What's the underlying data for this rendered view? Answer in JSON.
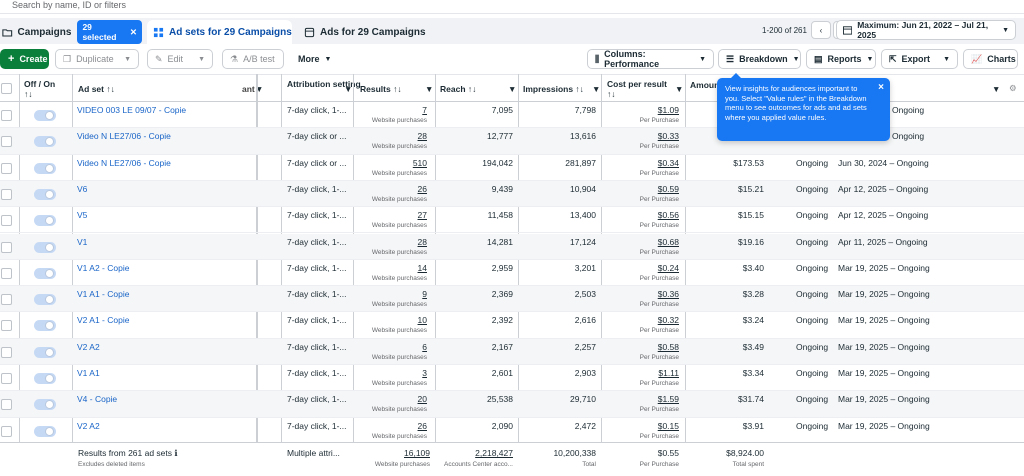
{
  "search": {
    "placeholder": "Search by name, ID or filters"
  },
  "tabs": {
    "campaigns": {
      "label": "Campaigns",
      "chip": "29 selected"
    },
    "adsets": {
      "label": "Ad sets for 29 Campaigns"
    },
    "ads": {
      "label": "Ads for 29 Campaigns"
    }
  },
  "pager": {
    "range": "1-200 of 261",
    "prev": "‹",
    "next": "›"
  },
  "date_range": "Maximum: Jun 21, 2022 – Jul 21, 2025",
  "toolbar": {
    "create": "Create",
    "duplicate": "Duplicate",
    "edit": "Edit",
    "ab_test": "A/B test",
    "more": "More",
    "columns": "Columns: Performance",
    "breakdown": "Breakdown",
    "reports": "Reports",
    "export": "Export",
    "charts": "Charts"
  },
  "columns": {
    "off_on": "Off / On",
    "off_on_sort": "↑↓",
    "adset": "Ad set ↑↓",
    "attribution": "Attribution setting",
    "results": "Results ↑↓",
    "reach": "Reach ↑↓",
    "impressions": "Impressions ↑↓",
    "cpr": "Cost per result",
    "cpr_sort": "↑↓",
    "amount": "Amoun",
    "cut": "ant"
  },
  "tooltip": {
    "text": "View insights for audiences important to you. Select \"Value rules\" in the Breakdown menu to see outcomes for ads and ad sets where you applied value rules.",
    "close": "×"
  },
  "rows": [
    {
      "name": "VIDEO 003 LE 09/07 - Copie",
      "attr": "7-day click, 1-...",
      "results": "7",
      "reach": "7,095",
      "impr": "7,798",
      "cpr": "$1.09",
      "amount": "",
      "delivery": "",
      "ends": "Ongoing"
    },
    {
      "name": "Video N LE27/06 - Copie",
      "attr": "7-day click or ...",
      "results": "28",
      "reach": "12,777",
      "impr": "13,616",
      "cpr": "$0.33",
      "amount": "",
      "delivery": "",
      "ends": "Ongoing"
    },
    {
      "name": "Video N LE27/06 - Copie",
      "attr": "7-day click or ...",
      "results": "510",
      "reach": "194,042",
      "impr": "281,897",
      "cpr": "$0.34",
      "amount": "$173.53",
      "delivery": "Ongoing",
      "ends": "Jun 30, 2024 – Ongoing"
    },
    {
      "name": "V6",
      "attr": "7-day click, 1-...",
      "results": "26",
      "reach": "9,439",
      "impr": "10,904",
      "cpr": "$0.59",
      "amount": "$15.21",
      "delivery": "Ongoing",
      "ends": "Apr 12, 2025 – Ongoing"
    },
    {
      "name": "V5",
      "attr": "7-day click, 1-...",
      "results": "27",
      "reach": "11,458",
      "impr": "13,400",
      "cpr": "$0.56",
      "amount": "$15.15",
      "delivery": "Ongoing",
      "ends": "Apr 12, 2025 – Ongoing"
    },
    {
      "name": "V1",
      "attr": "7-day click, 1-...",
      "results": "28",
      "reach": "14,281",
      "impr": "17,124",
      "cpr": "$0.68",
      "amount": "$19.16",
      "delivery": "Ongoing",
      "ends": "Apr 11, 2025 – Ongoing"
    },
    {
      "name": "V1 A2 - Copie",
      "attr": "7-day click, 1-...",
      "results": "14",
      "reach": "2,959",
      "impr": "3,201",
      "cpr": "$0.24",
      "amount": "$3.40",
      "delivery": "Ongoing",
      "ends": "Mar 19, 2025 – Ongoing"
    },
    {
      "name": "V1 A1 - Copie",
      "attr": "7-day click, 1-...",
      "results": "9",
      "reach": "2,369",
      "impr": "2,503",
      "cpr": "$0.36",
      "amount": "$3.28",
      "delivery": "Ongoing",
      "ends": "Mar 19, 2025 – Ongoing"
    },
    {
      "name": "V2 A1 - Copie",
      "attr": "7-day click, 1-...",
      "results": "10",
      "reach": "2,392",
      "impr": "2,616",
      "cpr": "$0.32",
      "amount": "$3.24",
      "delivery": "Ongoing",
      "ends": "Mar 19, 2025 – Ongoing"
    },
    {
      "name": "V2 A2",
      "attr": "7-day click, 1-...",
      "results": "6",
      "reach": "2,167",
      "impr": "2,257",
      "cpr": "$0.58",
      "amount": "$3.49",
      "delivery": "Ongoing",
      "ends": "Mar 19, 2025 – Ongoing"
    },
    {
      "name": "V1 A1",
      "attr": "7-day click, 1-...",
      "results": "3",
      "reach": "2,601",
      "impr": "2,903",
      "cpr": "$1.11",
      "amount": "$3.34",
      "delivery": "Ongoing",
      "ends": "Mar 19, 2025 – Ongoing"
    },
    {
      "name": "V4 - Copie",
      "attr": "7-day click, 1-...",
      "results": "20",
      "reach": "25,538",
      "impr": "29,710",
      "cpr": "$1.59",
      "amount": "$31.74",
      "delivery": "Ongoing",
      "ends": "Mar 19, 2025 – Ongoing"
    },
    {
      "name": "V2 A2",
      "attr": "7-day click, 1-...",
      "results": "26",
      "reach": "2,090",
      "impr": "2,472",
      "cpr": "$0.15",
      "amount": "$3.91",
      "delivery": "Ongoing",
      "ends": "Mar 19, 2025 – Ongoing"
    }
  ],
  "row_sub": {
    "results": "Website purchases",
    "cpr": "Per Purchase"
  },
  "footer": {
    "label": "Results from 261 ad sets",
    "info": "ℹ",
    "excluded": "Excludes deleted items",
    "attr": "Multiple attri...",
    "results": "16,109",
    "results_sub": "Website purchases",
    "reach": "2,218,427",
    "reach_sub": "Accounts Center acco...",
    "impr": "10,200,338",
    "impr_sub": "Total",
    "cpr": "$0.55",
    "cpr_sub": "Per Purchase",
    "amount": "$8,924.00",
    "amount_sub": "Total spent"
  },
  "colors": {
    "primary": "#1877f2",
    "create_green": "#0a7e3b",
    "link": "#1a65c8"
  }
}
